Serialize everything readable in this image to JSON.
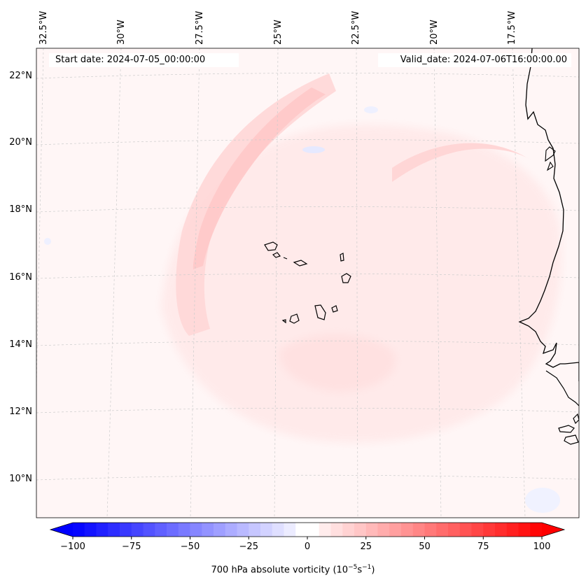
{
  "map": {
    "title_left_label": "Start date:",
    "start_date": "2024-07-05_00:00:00",
    "title_right_label": "Valid_date:",
    "valid_date": "2024-07-06T16:00:00.00",
    "longitude_labels": [
      "32.5°W",
      "30°W",
      "27.5°W",
      "25°W",
      "22.5°W",
      "20°W",
      "17.5°W"
    ],
    "latitude_labels": [
      "22°N",
      "20°N",
      "18°N",
      "16°N",
      "14°N",
      "12°N",
      "10°N"
    ],
    "field": "700 hPa absolute vorticity",
    "features": [
      "Cape Verde islands",
      "West African coastline"
    ]
  },
  "colorbar": {
    "label_prefix": "700 hPa absolute vorticity (10",
    "label_exp1": "−5",
    "label_mid": "s",
    "label_exp2": "−1",
    "label_suffix": ")",
    "ticks": [
      "−100",
      "−75",
      "−50",
      "−25",
      "0",
      "25",
      "50",
      "75",
      "100"
    ],
    "range": [
      -100,
      100
    ],
    "step": 5,
    "neg_color": "#0000ff",
    "pos_color": "#ff0000"
  }
}
